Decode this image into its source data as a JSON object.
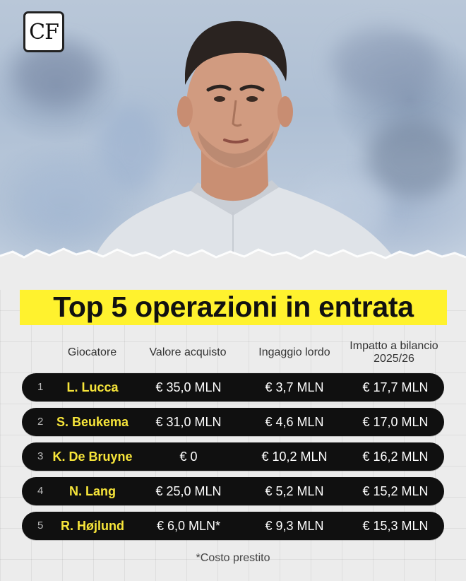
{
  "brand": {
    "logo_text": "CF"
  },
  "title": "Top 5 operazioni in entrata",
  "columns": {
    "player": "Giocatore",
    "purchase_value": "Valore acquisto",
    "gross_salary": "Ingaggio lordo",
    "budget_impact_line1": "Impatto a bilancio",
    "budget_impact_line2": "2025/26"
  },
  "rows": [
    {
      "rank": "1",
      "name": "L. Lucca",
      "purchase": "€ 35,0 MLN",
      "salary": "€ 3,7 MLN",
      "impact": "€ 17,7 MLN"
    },
    {
      "rank": "2",
      "name": "S. Beukema",
      "purchase": "€ 31,0 MLN",
      "salary": "€ 4,6 MLN",
      "impact": "€ 17,0 MLN"
    },
    {
      "rank": "3",
      "name": "K. De Bruyne",
      "purchase": "€ 0",
      "salary": "€ 10,2 MLN",
      "impact": "€ 16,2 MLN"
    },
    {
      "rank": "4",
      "name": "N. Lang",
      "purchase": "€ 25,0 MLN",
      "salary": "€ 5,2 MLN",
      "impact": "€ 15,2 MLN"
    },
    {
      "rank": "5",
      "name": "R. Højlund",
      "purchase": "€ 6,0 MLN*",
      "salary": "€ 9,3 MLN",
      "impact": "€ 15,3 MLN"
    }
  ],
  "footnote": "*Costo prestito",
  "colors": {
    "highlight": "#fff22e",
    "row_bg": "#101010",
    "name_text": "#f7e53a"
  }
}
